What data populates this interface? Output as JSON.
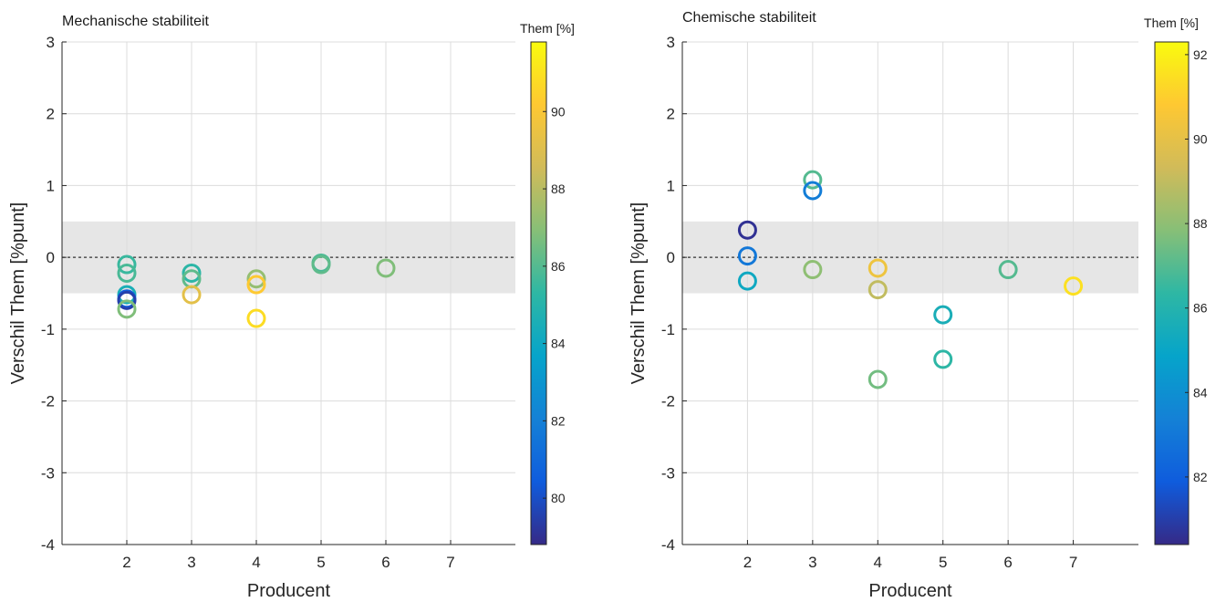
{
  "chart_data": [
    {
      "type": "scatter",
      "title": "Mechanische stabiliteit",
      "xlabel": "Producent",
      "ylabel": "Verschil Them [%punt]",
      "xlim": [
        1,
        8
      ],
      "ylim": [
        -4,
        3
      ],
      "xticks": [
        2,
        3,
        4,
        5,
        6,
        7
      ],
      "yticks": [
        -4,
        -3,
        -2,
        -1,
        0,
        1,
        2,
        3
      ],
      "band": [
        -0.5,
        0.5
      ],
      "zero_line": 0,
      "grid": true,
      "colorbar": {
        "title": "Them [%]",
        "min": 78.8,
        "max": 91.8,
        "ticks": [
          80,
          82,
          84,
          86,
          88,
          90
        ],
        "tick_labels": [
          "80",
          "82",
          "84",
          "86",
          "88",
          "90"
        ]
      },
      "points": [
        {
          "x": 2,
          "y": -0.1,
          "c": 85.5
        },
        {
          "x": 2,
          "y": -0.22,
          "c": 85.8
        },
        {
          "x": 2,
          "y": -0.52,
          "c": 84.5
        },
        {
          "x": 2,
          "y": -0.58,
          "c": 80.5
        },
        {
          "x": 2,
          "y": -0.6,
          "c": 79.5
        },
        {
          "x": 2,
          "y": -0.72,
          "c": 86.8
        },
        {
          "x": 3,
          "y": -0.22,
          "c": 85.2
        },
        {
          "x": 3,
          "y": -0.3,
          "c": 86.2
        },
        {
          "x": 3,
          "y": -0.52,
          "c": 89.2
        },
        {
          "x": 4,
          "y": -0.3,
          "c": 87.2
        },
        {
          "x": 4,
          "y": -0.38,
          "c": 90.2
        },
        {
          "x": 4,
          "y": -0.85,
          "c": 90.8
        },
        {
          "x": 5,
          "y": -0.08,
          "c": 85.8
        },
        {
          "x": 5,
          "y": -0.1,
          "c": 86.2
        },
        {
          "x": 6,
          "y": -0.15,
          "c": 86.8
        }
      ]
    },
    {
      "type": "scatter",
      "title": "Chemische stabiliteit",
      "xlabel": "Producent",
      "ylabel": "Verschil Them [%punt]",
      "xlim": [
        1,
        8
      ],
      "ylim": [
        -4,
        3
      ],
      "xticks": [
        2,
        3,
        4,
        5,
        6,
        7
      ],
      "yticks": [
        -4,
        -3,
        -2,
        -1,
        0,
        1,
        2,
        3
      ],
      "band": [
        -0.5,
        0.5
      ],
      "zero_line": 0,
      "grid": true,
      "colorbar": {
        "title": "Them [%]",
        "min": 80.4,
        "max": 92.3,
        "ticks": [
          82,
          84,
          86,
          88,
          90,
          92
        ],
        "tick_labels": [
          "82",
          "84",
          "86",
          "88",
          "90",
          "92"
        ]
      },
      "points": [
        {
          "x": 2,
          "y": 0.38,
          "c": 80.6
        },
        {
          "x": 2,
          "y": 0.02,
          "c": 83.0
        },
        {
          "x": 2,
          "y": -0.33,
          "c": 85.2
        },
        {
          "x": 3,
          "y": 1.08,
          "c": 87.0
        },
        {
          "x": 3,
          "y": 0.93,
          "c": 83.2
        },
        {
          "x": 3,
          "y": -0.17,
          "c": 88.0
        },
        {
          "x": 4,
          "y": -0.15,
          "c": 90.3
        },
        {
          "x": 4,
          "y": -0.45,
          "c": 89.0
        },
        {
          "x": 4,
          "y": -1.7,
          "c": 87.5
        },
        {
          "x": 5,
          "y": -0.8,
          "c": 85.6
        },
        {
          "x": 5,
          "y": -1.42,
          "c": 86.3
        },
        {
          "x": 6,
          "y": -0.17,
          "c": 87.0
        },
        {
          "x": 7,
          "y": -0.4,
          "c": 91.5
        }
      ]
    }
  ]
}
